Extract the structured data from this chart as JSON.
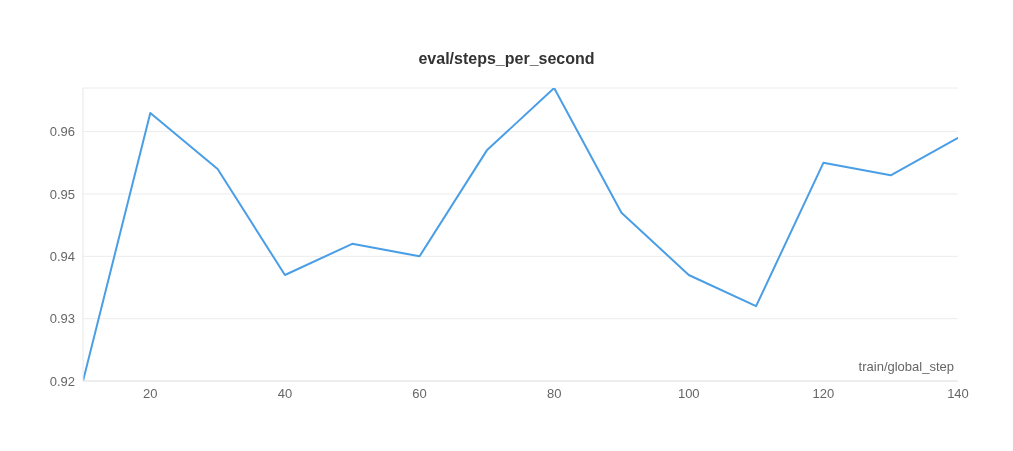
{
  "chart_data": {
    "type": "line",
    "title": "eval/steps_per_second",
    "xlabel": "train/global_step",
    "x": [
      10,
      20,
      30,
      40,
      50,
      60,
      70,
      80,
      90,
      100,
      110,
      120,
      130,
      140
    ],
    "series": [
      {
        "color": "#4a9ee6",
        "values": [
          0.92,
          0.963,
          0.954,
          0.937,
          0.942,
          0.94,
          0.957,
          0.967,
          0.947,
          0.937,
          0.932,
          0.955,
          0.953,
          0.959
        ]
      }
    ],
    "xlim": [
      10,
      140
    ],
    "xticks": [
      20,
      40,
      60,
      80,
      100,
      120,
      140
    ],
    "ylim": [
      0.92,
      0.967
    ],
    "yticks": [
      0.92,
      0.93,
      0.94,
      0.95,
      0.96
    ],
    "grid": "y",
    "legend": false,
    "marker": "none",
    "line_style": "solid"
  }
}
